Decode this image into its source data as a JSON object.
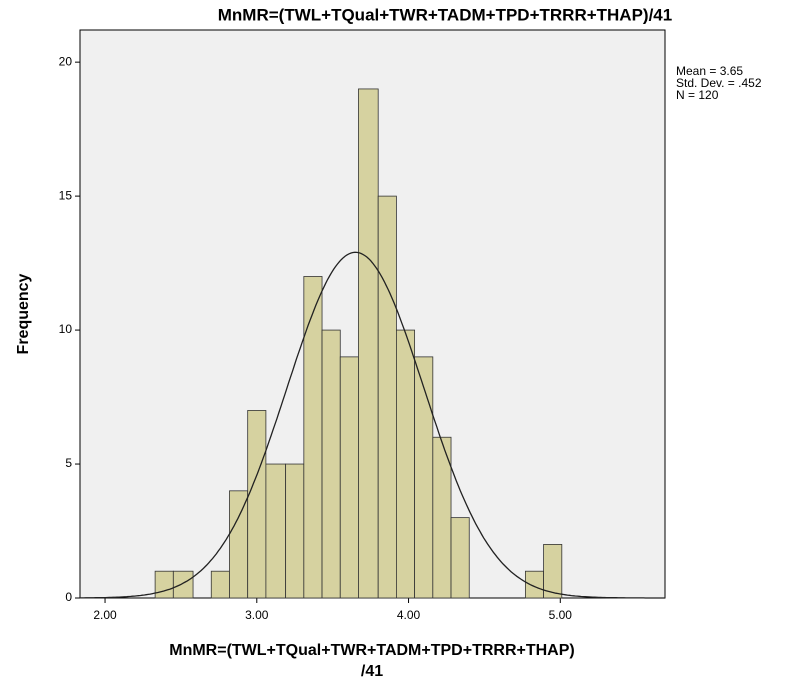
{
  "chart_data": {
    "type": "histogram",
    "title": "MnMR=(TWL+TQual+TWR+TADM+TPD+TRRR+THAP)/41",
    "xlabel": [
      "MnMR=(TWL+TQual+TWR+TADM+TPD+TRRR+THAP)",
      "/41"
    ],
    "ylabel": "Frequency",
    "bins": [
      2.33,
      2.45,
      2.58,
      2.7,
      2.82,
      2.94,
      3.06,
      3.19,
      3.31,
      3.43,
      3.55,
      3.67,
      3.8,
      3.92,
      4.04,
      4.16,
      4.28,
      4.4,
      4.53,
      4.65,
      4.77,
      4.89,
      5.01
    ],
    "values": [
      1,
      1,
      0,
      1,
      4,
      7,
      5,
      5,
      12,
      10,
      9,
      19,
      15,
      10,
      9,
      6,
      3,
      0,
      0,
      0,
      1,
      2
    ],
    "color": "#d6d2a0",
    "stats": [
      {
        "label": "Mean = 3.65",
        "value": 3.65
      },
      {
        "label": "Std. Dev. = .452",
        "value": 0.452
      },
      {
        "label": "N = 120",
        "value": 120
      }
    ],
    "xlim": [
      1.835,
      5.69
    ],
    "ylim": [
      0,
      21.2
    ],
    "xticks": [
      {
        "value": 2,
        "label": "2.00"
      },
      {
        "value": 3,
        "label": "3.00"
      },
      {
        "value": 4,
        "label": "4.00"
      },
      {
        "value": 5,
        "label": "5.00"
      }
    ],
    "yticks": [
      0,
      5,
      10,
      15,
      20
    ]
  }
}
